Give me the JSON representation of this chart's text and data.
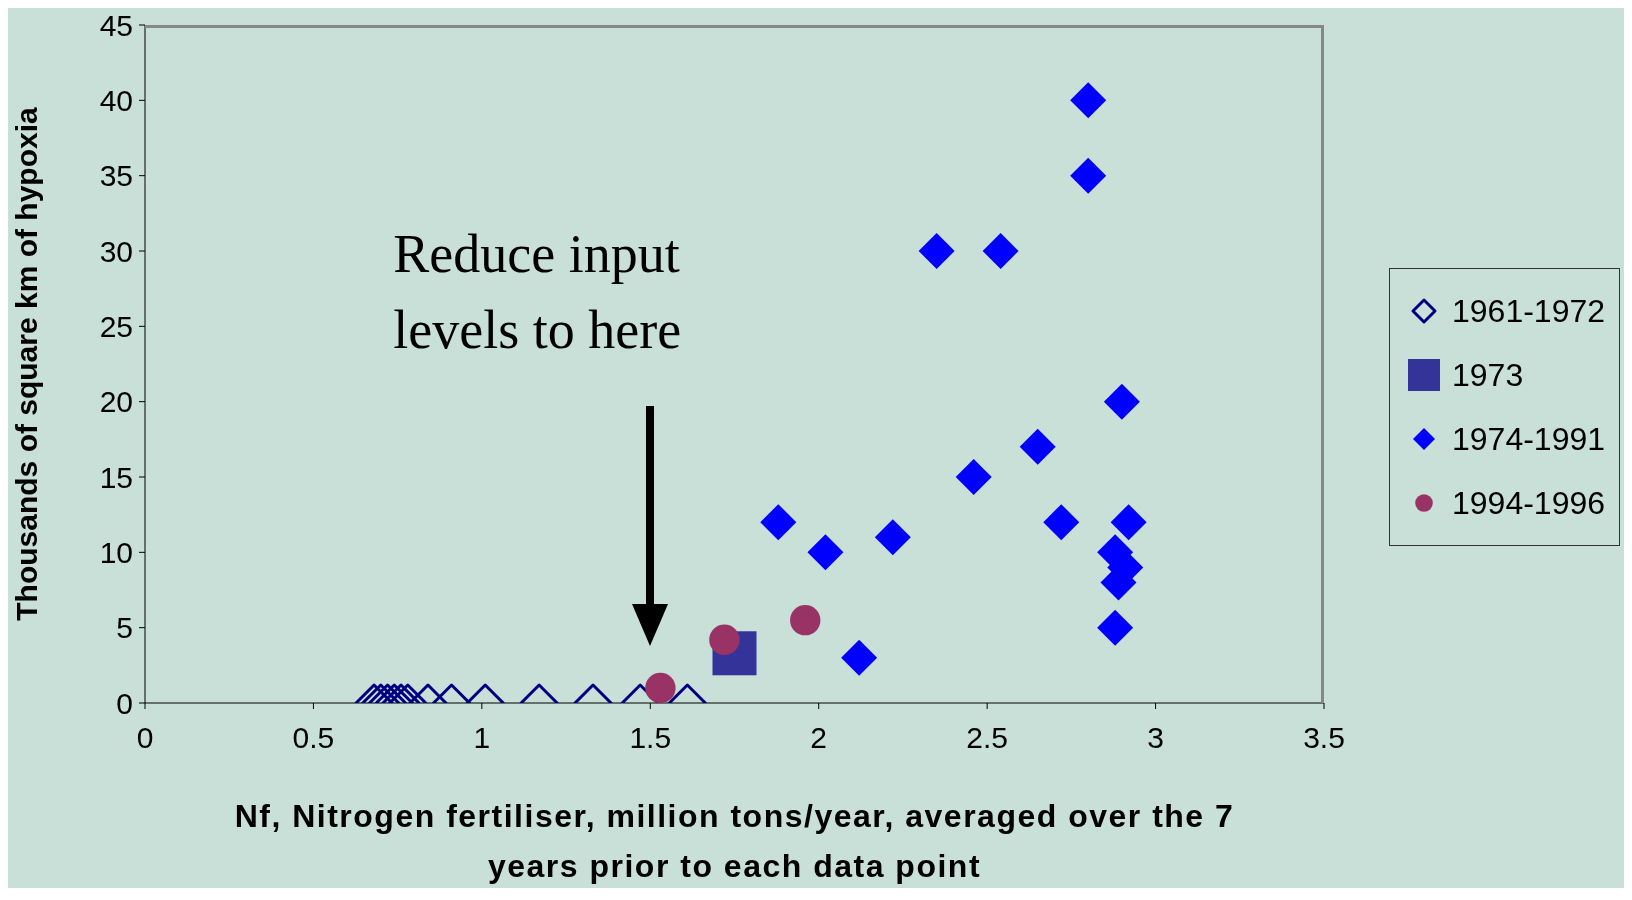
{
  "chart_data": {
    "type": "scatter",
    "xlabel": "Nf, Nitrogen fertiliser, million tons/year, averaged over the 7 years prior to each data point",
    "ylabel": "Thousands of square km of hypoxia",
    "xlim": [
      0,
      3.5
    ],
    "xticks": [
      0,
      0.5,
      1,
      1.5,
      2,
      2.5,
      3,
      3.5
    ],
    "ylim": [
      0,
      45
    ],
    "yticks": [
      0,
      5,
      10,
      15,
      20,
      25,
      30,
      35,
      40,
      45
    ],
    "grid": false,
    "legend": "right",
    "annotations": [
      "Reduce input levels to here"
    ],
    "series": [
      {
        "name": "1961-1972",
        "color": "#000080",
        "marker": "diamond-open",
        "x": [
          0.68,
          0.7,
          0.72,
          0.74,
          0.76,
          0.78,
          0.84,
          0.91,
          1.01,
          1.17,
          1.33,
          1.47,
          1.61
        ],
        "values": [
          0,
          0,
          0,
          0,
          0,
          0,
          0,
          0,
          0,
          0,
          0,
          0,
          0
        ]
      },
      {
        "name": "1973",
        "color": "#333399",
        "marker": "square",
        "x": [
          1.75
        ],
        "values": [
          3.3
        ]
      },
      {
        "name": "1974-1991",
        "color": "#0000ff",
        "marker": "diamond",
        "x": [
          2.8,
          2.8,
          2.35,
          2.54,
          2.9,
          2.65,
          2.46,
          1.88,
          2.72,
          2.92,
          2.22,
          2.02,
          2.88,
          2.91,
          2.89,
          2.88,
          2.12
        ],
        "values": [
          40,
          35,
          30,
          30,
          20,
          17,
          15,
          12,
          12,
          12,
          11,
          10,
          10,
          9,
          8,
          5,
          3
        ]
      },
      {
        "name": "1994-1996",
        "color": "#993366",
        "marker": "circle",
        "x": [
          1.53,
          1.72,
          1.96
        ],
        "values": [
          1,
          4.2,
          5.5
        ]
      }
    ]
  }
}
